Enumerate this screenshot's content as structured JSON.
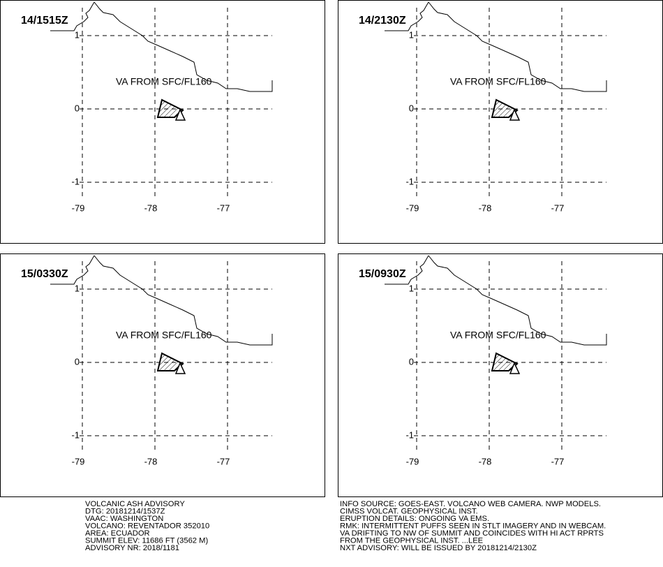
{
  "panels": [
    {
      "time": "14/1515Z",
      "label": "VA FROM SFC/FL160",
      "lat_ticks": [
        1,
        0,
        -1
      ],
      "lon_ticks": [
        -79,
        -78,
        -77
      ]
    },
    {
      "time": "14/2130Z",
      "label": "VA FROM SFC/FL160",
      "lat_ticks": [
        1,
        0,
        -1
      ],
      "lon_ticks": [
        -79,
        -78,
        -77
      ]
    },
    {
      "time": "15/0330Z",
      "label": "VA FROM SFC/FL160",
      "lat_ticks": [
        1,
        0,
        -1
      ],
      "lon_ticks": [
        -79,
        -78,
        -77
      ]
    },
    {
      "time": "15/0930Z",
      "label": "VA FROM SFC/FL160",
      "lat_ticks": [
        1,
        0,
        -1
      ],
      "lon_ticks": [
        -79,
        -78,
        -77
      ]
    }
  ],
  "advisory_left": [
    "VOLCANIC ASH ADVISORY",
    "DTG: 20181214/1537Z",
    "VAAC: WASHINGTON",
    "VOLCANO: REVENTADOR 352010",
    "AREA: ECUADOR",
    "SUMMIT ELEV: 11686 FT (3562 M)",
    "ADVISORY NR: 2018/1181"
  ],
  "advisory_right": [
    "INFO SOURCE: GOES-EAST. VOLCANO WEB CAMERA. NWP MODELS.",
    "CIMSS VOLCAT. GEOPHYSICAL INST.",
    "ERUPTION DETAILS: ONGOING VA EMS.",
    "RMK: INTERMITTENT PUFFS SEEN IN STLT IMAGERY AND IN WEBCAM.",
    "VA DRIFTING TO NW OF SUMMIT AND COINCIDES WITH HI ACT RPRTS",
    "FROM THE GEOPHYSICAL INST. ...LEE",
    "NXT ADVISORY: WILL BE ISSUED BY 20181214/2130Z"
  ]
}
